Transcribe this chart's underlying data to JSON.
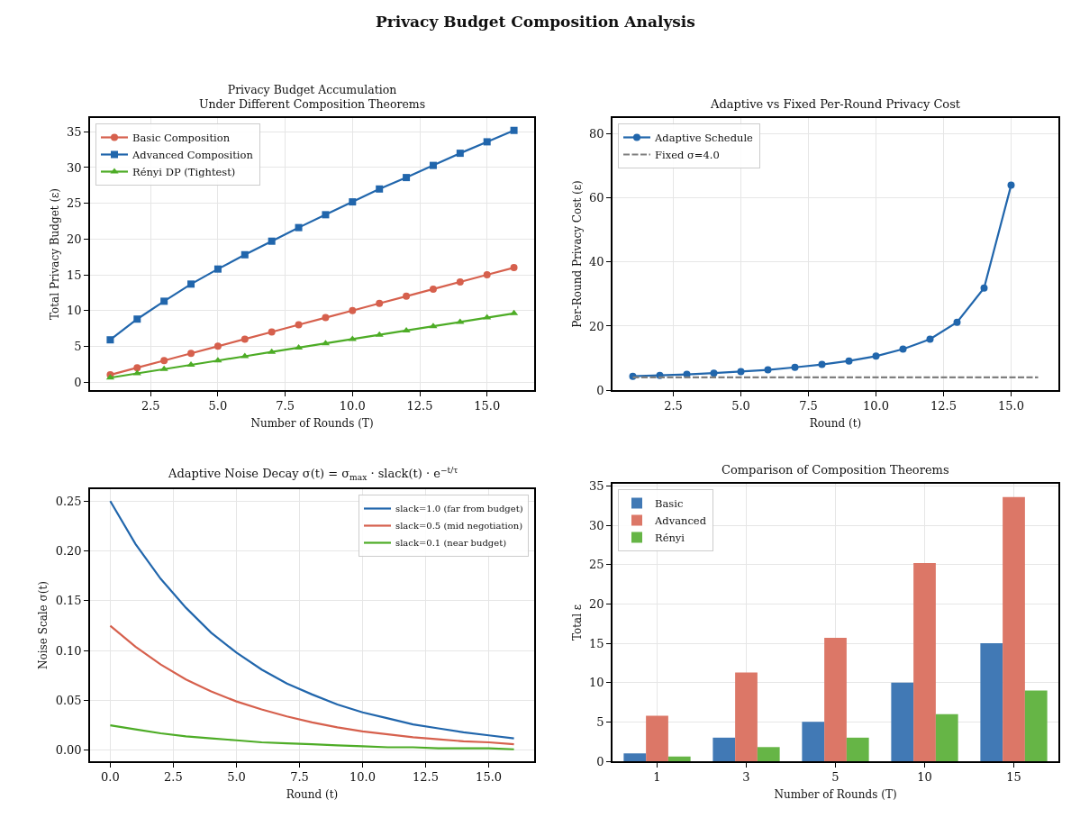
{
  "chart_data": [
    {
      "type": "line",
      "title": "Privacy Budget Accumulation\nUnder Different Composition Theorems",
      "annotations": [
        "Privacy Budget Composition Analysis"
      ],
      "xlabel": "Number of Rounds (T)",
      "ylabel": "Total Privacy Budget (ε)",
      "x": [
        1,
        2,
        3,
        4,
        5,
        6,
        7,
        8,
        9,
        10,
        11,
        12,
        13,
        14,
        15,
        16
      ],
      "series": [
        {
          "name": "Basic Composition",
          "color": "#d6604d",
          "marker": "circle",
          "values": [
            1,
            2,
            3,
            4,
            5,
            6,
            7,
            8,
            9,
            10,
            11,
            12,
            13,
            14,
            15,
            16
          ]
        },
        {
          "name": "Advanced Composition",
          "color": "#2166ac",
          "marker": "square",
          "values": [
            5.9,
            8.8,
            11.3,
            13.7,
            15.8,
            17.8,
            19.7,
            21.6,
            23.4,
            25.2,
            27.0,
            28.6,
            30.3,
            32.0,
            33.6,
            35.2
          ]
        },
        {
          "name": "Rényi DP (Tightest)",
          "color": "#4dac26",
          "marker": "triangle",
          "values": [
            0.6,
            1.2,
            1.8,
            2.4,
            3.0,
            3.6,
            4.2,
            4.8,
            5.4,
            6.0,
            6.6,
            7.2,
            7.8,
            8.4,
            9.0,
            9.6
          ]
        }
      ],
      "xlim": [
        0.25,
        16.75
      ],
      "ylim": [
        -1.13,
        36.93
      ],
      "xticks": [
        {
          "value": 2.5,
          "label": "2.5"
        },
        {
          "value": 5,
          "label": "5.0"
        },
        {
          "value": 7.5,
          "label": "7.5"
        },
        {
          "value": 10,
          "label": "10.0"
        },
        {
          "value": 12.5,
          "label": "12.5"
        },
        {
          "value": 15,
          "label": "15.0"
        }
      ],
      "yticks": [
        0,
        5,
        10,
        15,
        20,
        25,
        30,
        35
      ],
      "grid": true,
      "legend": "top left"
    },
    {
      "type": "line",
      "title": "Adaptive vs Fixed Per-Round Privacy Cost",
      "xlabel": "Round (t)",
      "ylabel": "Per-Round Privacy Cost (ε)",
      "x": [
        1,
        2,
        3,
        4,
        5,
        6,
        7,
        8,
        9,
        10,
        11,
        12,
        13,
        14,
        15,
        16
      ],
      "series": [
        {
          "name": "Adaptive Schedule",
          "color": "#2166ac",
          "marker": "circle",
          "line_style": "solid",
          "values": [
            4.3,
            4.6,
            4.9,
            5.3,
            5.8,
            6.3,
            7.1,
            8.0,
            9.1,
            10.6,
            12.8,
            15.9,
            21.2,
            31.9,
            64,
            null
          ]
        },
        {
          "name": "Fixed σ=4.0",
          "color": "#808080",
          "marker": "none",
          "line_style": "dashed",
          "values": [
            4,
            4,
            4,
            4,
            4,
            4,
            4,
            4,
            4,
            4,
            4,
            4,
            4,
            4,
            4,
            4
          ]
        }
      ],
      "xlim": [
        0.25,
        16.75
      ],
      "ylim": [
        0,
        85
      ],
      "xticks": [
        {
          "value": 2.5,
          "label": "2.5"
        },
        {
          "value": 5,
          "label": "5.0"
        },
        {
          "value": 7.5,
          "label": "7.5"
        },
        {
          "value": 10,
          "label": "10.0"
        },
        {
          "value": 12.5,
          "label": "12.5"
        },
        {
          "value": 15,
          "label": "15.0"
        }
      ],
      "yticks": [
        0,
        20,
        40,
        60,
        80
      ],
      "grid": true,
      "legend": "top left"
    },
    {
      "type": "line",
      "title": "Adaptive Noise Decay σ(t) = σ$_{max}$ · slack(t) · e$^{−t/τ}$",
      "xlabel": "Round (t)",
      "ylabel": "Noise Scale σ(t)",
      "x": [
        0,
        1,
        2,
        3,
        4,
        5,
        6,
        7,
        8,
        9,
        10,
        11,
        12,
        13,
        14,
        15,
        16
      ],
      "series": [
        {
          "name": "slack=1.0 (far from budget)",
          "color": "#2166ac",
          "values": [
            0.25,
            0.207,
            0.172,
            0.143,
            0.118,
            0.098,
            0.081,
            0.067,
            0.056,
            0.046,
            0.038,
            0.032,
            0.026,
            0.022,
            0.018,
            0.015,
            0.012
          ]
        },
        {
          "name": "slack=0.5 (mid negotiation)",
          "color": "#d6604d",
          "values": [
            0.125,
            0.104,
            0.086,
            0.071,
            0.059,
            0.049,
            0.041,
            0.034,
            0.028,
            0.023,
            0.019,
            0.016,
            0.013,
            0.011,
            0.009,
            0.008,
            0.006
          ]
        },
        {
          "name": "slack=0.1 (near budget)",
          "color": "#4dac26",
          "values": [
            0.025,
            0.021,
            0.017,
            0.014,
            0.012,
            0.01,
            0.008,
            0.007,
            0.006,
            0.005,
            0.004,
            0.003,
            0.003,
            0.002,
            0.002,
            0.002,
            0.001
          ]
        }
      ],
      "xlim": [
        -0.8,
        16.8
      ],
      "ylim": [
        -0.011,
        0.262
      ],
      "xticks": [
        {
          "value": 0,
          "label": "0.0"
        },
        {
          "value": 2.5,
          "label": "2.5"
        },
        {
          "value": 5,
          "label": "5.0"
        },
        {
          "value": 7.5,
          "label": "7.5"
        },
        {
          "value": 10,
          "label": "10.0"
        },
        {
          "value": 12.5,
          "label": "12.5"
        },
        {
          "value": 15,
          "label": "15.0"
        }
      ],
      "yticks": [
        {
          "value": 0,
          "label": "0.00"
        },
        {
          "value": 0.05,
          "label": "0.05"
        },
        {
          "value": 0.1,
          "label": "0.10"
        },
        {
          "value": 0.15,
          "label": "0.15"
        },
        {
          "value": 0.2,
          "label": "0.20"
        },
        {
          "value": 0.25,
          "label": "0.25"
        }
      ],
      "grid": true,
      "legend": "top right"
    },
    {
      "type": "bar",
      "title": "Comparison of Composition Theorems",
      "xlabel": "Number of Rounds (T)",
      "ylabel": "Total ε",
      "categories": [
        "1",
        "3",
        "5",
        "10",
        "15"
      ],
      "series": [
        {
          "name": "Basic",
          "color": "#4179b5",
          "values": [
            1,
            3,
            5,
            10,
            15
          ]
        },
        {
          "name": "Advanced",
          "color": "#dc7767",
          "values": [
            5.8,
            11.3,
            15.7,
            25.2,
            33.6
          ]
        },
        {
          "name": "Rényi",
          "color": "#66b546",
          "values": [
            0.6,
            1.8,
            3.0,
            6.0,
            9.0
          ]
        }
      ],
      "ylim": [
        0,
        35.3
      ],
      "yticks": [
        0,
        5,
        10,
        15,
        20,
        25,
        30,
        35
      ],
      "grid": true,
      "legend": "top left"
    }
  ]
}
